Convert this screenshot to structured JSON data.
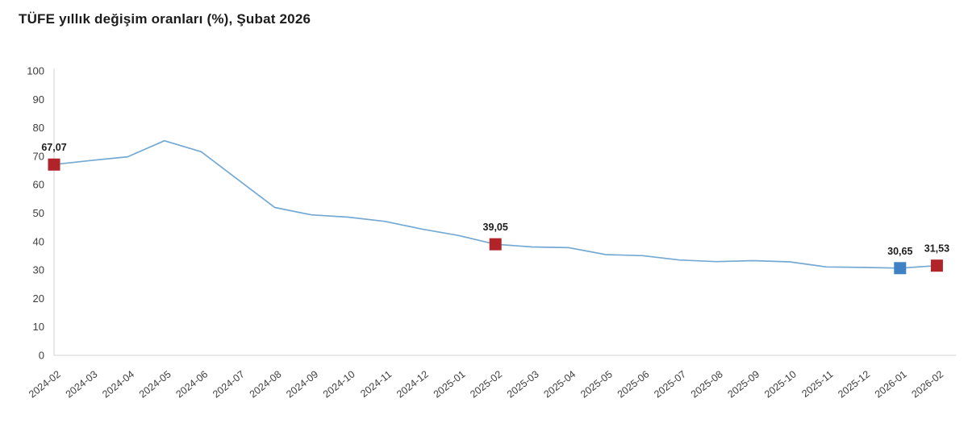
{
  "page": {
    "background": "#ffffff"
  },
  "header": {
    "title": "TÜFE yıllık değişim oranları (%), Şubat 2026"
  },
  "chart_data": {
    "type": "line",
    "title": "TÜFE yıllık değişim oranları (%), Şubat 2026",
    "x": [
      "2024-02",
      "2024-03",
      "2024-04",
      "2024-05",
      "2024-06",
      "2024-07",
      "2024-08",
      "2024-09",
      "2024-10",
      "2024-11",
      "2024-12",
      "2025-01",
      "2025-02",
      "2025-03",
      "2025-04",
      "2025-05",
      "2025-06",
      "2025-07",
      "2025-08",
      "2025-09",
      "2025-10",
      "2025-11",
      "2025-12",
      "2026-01",
      "2026-02"
    ],
    "series": [
      {
        "name": "TÜFE yıllık değişim oranı (%)",
        "values": [
          67.07,
          68.5,
          69.8,
          75.45,
          71.6,
          61.78,
          51.97,
          49.38,
          48.58,
          47.09,
          44.38,
          42.12,
          39.05,
          38.1,
          37.86,
          35.41,
          35.05,
          33.52,
          32.95,
          33.29,
          32.87,
          31.07,
          30.9,
          30.65,
          31.53
        ]
      }
    ],
    "labeled_points": [
      {
        "x": "2024-02",
        "value": 67.07,
        "label": "67,07",
        "marker": "red"
      },
      {
        "x": "2025-02",
        "value": 39.05,
        "label": "39,05",
        "marker": "red"
      },
      {
        "x": "2026-01",
        "value": 30.65,
        "label": "30,65",
        "marker": "blue"
      },
      {
        "x": "2026-02",
        "value": 31.53,
        "label": "31,53",
        "marker": "red"
      }
    ],
    "ylim": [
      0,
      100
    ],
    "y_ticks": [
      0,
      10,
      20,
      30,
      40,
      50,
      60,
      70,
      80,
      90,
      100
    ],
    "grid": false,
    "legend": false,
    "colors": {
      "line": "#74a9d4",
      "marker_red": "#b02328",
      "marker_blue": "#3e81c4",
      "axis_line": "#dcdcdc",
      "tick_text": "#3d3d3d",
      "title_text": "#1c1c1c",
      "point_label_text": "#1c1c1c"
    }
  }
}
